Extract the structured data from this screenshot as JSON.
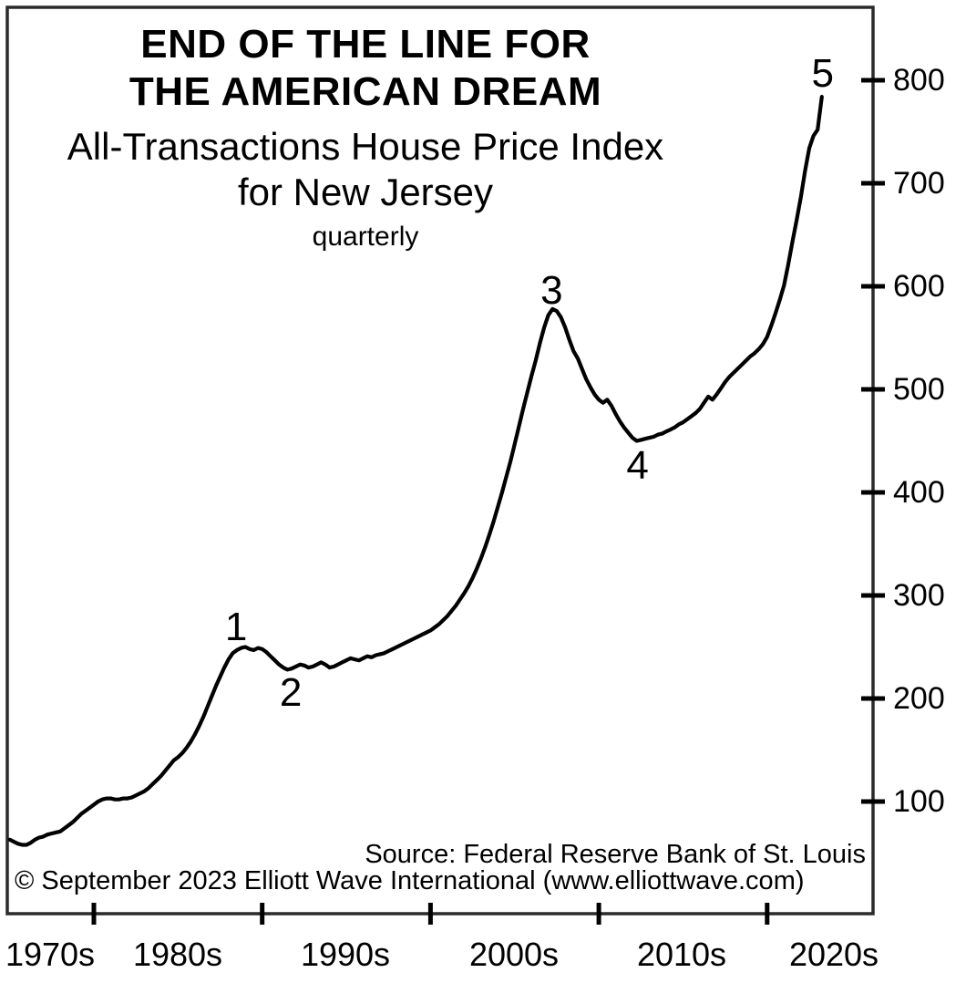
{
  "chart_data": {
    "type": "line",
    "title_line1": "END OF THE LINE FOR",
    "title_line2": "THE AMERICAN DREAM",
    "subtitle_line1": "All-Transactions House Price Index",
    "subtitle_line2": "for New Jersey",
    "frequency_label": "quarterly",
    "source": "Source: Federal Reserve Bank of St. Louis",
    "copyright": "© September 2023 Elliott Wave International (www.elliottwave.com)",
    "legend_position": "none",
    "grid": false,
    "ylim": [
      0,
      870
    ],
    "y_ticks": [
      800,
      700,
      600,
      500,
      400,
      300,
      200,
      100
    ],
    "x_tick_years": [
      1980,
      1990,
      2000,
      2010,
      2020
    ],
    "x_decade_labels": [
      "1970s",
      "1980s",
      "1990s",
      "2000s",
      "2010s",
      "2020s"
    ],
    "series": {
      "name": "All-Transactions House Price Index for New Jersey",
      "frequency": "quarterly",
      "start_year": 1975,
      "start_quarter": 1,
      "end_year": 2023,
      "end_quarter": 2,
      "values": [
        63,
        61,
        59,
        58,
        58,
        60,
        63,
        65,
        66,
        68,
        69,
        70,
        71,
        74,
        77,
        80,
        84,
        88,
        91,
        94,
        97,
        100,
        102,
        103,
        103,
        102,
        102,
        103,
        103,
        104,
        106,
        108,
        110,
        113,
        117,
        121,
        125,
        130,
        135,
        140,
        143,
        147,
        152,
        158,
        165,
        173,
        182,
        192,
        202,
        212,
        221,
        230,
        238,
        244,
        247,
        249,
        250,
        248,
        247,
        249,
        248,
        245,
        241,
        237,
        233,
        230,
        228,
        229,
        231,
        233,
        232,
        230,
        231,
        233,
        235,
        233,
        230,
        231,
        233,
        235,
        237,
        239,
        238,
        237,
        239,
        241,
        240,
        242,
        243,
        244,
        246,
        248,
        250,
        252,
        254,
        256,
        258,
        260,
        262,
        264,
        266,
        269,
        272,
        276,
        280,
        285,
        290,
        296,
        302,
        309,
        317,
        326,
        336,
        347,
        359,
        372,
        386,
        400,
        415,
        430,
        447,
        464,
        481,
        497,
        513,
        528,
        545,
        560,
        572,
        578,
        576,
        570,
        560,
        548,
        537,
        530,
        520,
        510,
        502,
        495,
        490,
        487,
        490,
        484,
        476,
        469,
        463,
        458,
        453,
        450,
        451,
        452,
        453,
        454,
        456,
        457,
        459,
        461,
        463,
        466,
        468,
        471,
        474,
        477,
        481,
        487,
        493,
        490,
        495,
        501,
        507,
        512,
        516,
        520,
        524,
        528,
        532,
        535,
        539,
        544,
        551,
        562,
        574,
        587,
        601,
        621,
        643,
        664,
        686,
        712,
        734,
        746,
        752,
        784
      ]
    },
    "wave_labels": [
      {
        "label": "1",
        "year": 1988.45,
        "value": 249,
        "dy": -23
      },
      {
        "label": "2",
        "year": 1991.7,
        "value": 229,
        "dy": 27
      },
      {
        "label": "3",
        "year": 2007.2,
        "value": 578,
        "dy": -20
      },
      {
        "label": "4",
        "year": 2012.3,
        "value": 450,
        "dy": 27
      },
      {
        "label": "5",
        "year": 2023.3,
        "value": 784,
        "dy": -25
      }
    ]
  }
}
